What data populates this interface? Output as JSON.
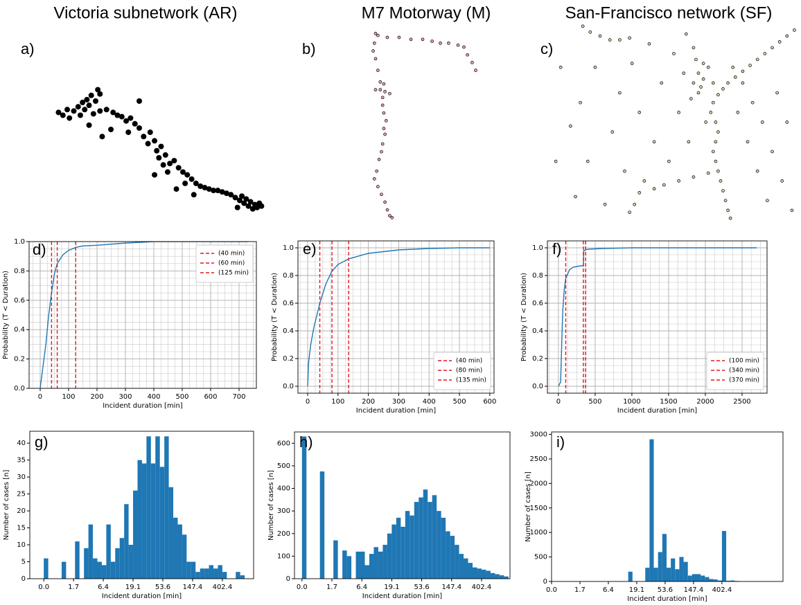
{
  "chart_data": [
    {
      "type": "scatter",
      "title": "Victoria subnetwork (AR)",
      "panel_label": "a)",
      "axes": false,
      "color": "#000000",
      "edgecolor": "#000000",
      "xlim": [
        0,
        100
      ],
      "ylim": [
        0,
        100
      ],
      "x": [
        3,
        5,
        7,
        8,
        10,
        12,
        13,
        14,
        15,
        16,
        17,
        18,
        19,
        20,
        21,
        22,
        17,
        22,
        25,
        28,
        30,
        32,
        34,
        36,
        38,
        35,
        40,
        42,
        45,
        44,
        47,
        48,
        50,
        49,
        52,
        51,
        54,
        56,
        47,
        53,
        58,
        60,
        62,
        64,
        61,
        66,
        68,
        70,
        72,
        74,
        76,
        78,
        80,
        82,
        84,
        86,
        87,
        88,
        89,
        90,
        91,
        92,
        93,
        94,
        95,
        96,
        85,
        65,
        57,
        23,
        27,
        40
      ],
      "values": [
        72,
        70,
        74,
        68,
        73,
        76,
        70,
        79,
        74,
        81,
        77,
        84,
        71,
        80,
        88,
        85,
        63,
        73,
        74,
        72,
        70,
        69,
        66,
        68,
        64,
        58,
        61,
        55,
        58,
        50,
        52,
        45,
        48,
        40,
        42,
        35,
        36,
        38,
        28,
        30,
        33,
        30,
        28,
        25,
        22,
        22,
        20,
        19,
        18,
        17,
        17,
        16,
        15,
        14,
        12,
        10,
        13,
        8,
        11,
        6,
        9,
        4,
        7,
        5,
        8,
        6,
        5,
        14,
        18,
        55,
        60,
        80
      ]
    },
    {
      "type": "scatter",
      "title": "M7 Motorway  (M)",
      "panel_label": "b)",
      "axes": false,
      "color": "#e8a0b0",
      "edgecolor": "#000000",
      "xlim": [
        0,
        100
      ],
      "ylim": [
        0,
        100
      ],
      "x": [
        10,
        12,
        20,
        30,
        40,
        50,
        58,
        65,
        72,
        80,
        85,
        88,
        92,
        95,
        9,
        8,
        10,
        12,
        14,
        10,
        14,
        18,
        22,
        16,
        17,
        16,
        17,
        19,
        17,
        18,
        16,
        15,
        13,
        11,
        9,
        12,
        15,
        18,
        20,
        22,
        24
      ],
      "values": [
        97,
        96,
        95,
        95,
        94,
        94,
        93,
        92,
        92,
        91,
        90,
        86,
        82,
        78,
        92,
        88,
        84,
        78,
        72,
        68,
        68,
        67,
        66,
        64,
        71,
        60,
        56,
        52,
        48,
        45,
        40,
        36,
        32,
        26,
        22,
        18,
        14,
        10,
        6,
        3,
        2
      ]
    },
    {
      "type": "scatter",
      "title": "San-Francisco network  (SF)",
      "panel_label": "c)",
      "axes": false,
      "color": "#c8d8a8",
      "edgecolor": "#000000",
      "xlim": [
        0,
        100
      ],
      "ylim": [
        0,
        100
      ],
      "x": [
        99,
        96,
        93,
        90,
        87,
        84,
        81,
        78,
        75,
        72,
        70,
        68,
        66,
        65,
        67,
        68,
        67,
        66,
        67,
        68,
        69,
        70,
        71,
        72,
        73,
        64,
        58,
        52,
        46,
        42,
        13,
        16,
        20,
        24,
        28,
        32,
        38,
        36,
        34,
        32,
        2,
        4,
        8,
        10,
        12,
        15,
        18,
        22,
        25,
        28,
        30,
        33,
        36,
        40,
        42,
        45,
        48,
        50,
        52,
        54,
        56,
        58,
        60,
        62,
        63,
        74,
        76,
        78,
        80,
        82,
        84,
        86,
        88,
        90,
        92,
        94,
        96,
        98,
        55,
        60,
        58,
        62,
        64,
        66,
        61,
        59,
        57
      ],
      "values": [
        97,
        94,
        91,
        88,
        85,
        82,
        79,
        76,
        73,
        70,
        67,
        64,
        60,
        55,
        50,
        45,
        40,
        35,
        30,
        25,
        20,
        15,
        10,
        5,
        1,
        24,
        22,
        20,
        18,
        16,
        99,
        96,
        94,
        92,
        92,
        93,
        20,
        14,
        8,
        4,
        30,
        78,
        48,
        12,
        60,
        30,
        78,
        8,
        45,
        65,
        25,
        80,
        55,
        90,
        40,
        70,
        30,
        85,
        55,
        75,
        40,
        88,
        65,
        80,
        50,
        78,
        55,
        70,
        40,
        60,
        25,
        50,
        10,
        35,
        65,
        20,
        50,
        5,
        95,
        75,
        70,
        72,
        78,
        70,
        68,
        82,
        62
      ]
    },
    {
      "type": "line",
      "panel_label": "d)",
      "xlabel": "Incident duration [min]",
      "ylabel": "Probability (T < Duration)",
      "color": "#1f77b4",
      "grid": true,
      "minor_grid": true,
      "xlim": [
        -39,
        761
      ],
      "ylim": [
        0,
        1
      ],
      "xticks": [
        0,
        100,
        200,
        300,
        400,
        500,
        600,
        700
      ],
      "yticks": [
        {
          "value": 0,
          "label": "0.0"
        },
        0.2,
        0.4,
        0.6,
        0.8,
        {
          "value": 1,
          "label": "1.0"
        }
      ],
      "x": [
        0,
        10,
        20,
        30,
        40,
        50,
        60,
        80,
        100,
        125,
        150,
        200,
        300,
        400,
        500,
        600,
        730
      ],
      "values": [
        0,
        0.15,
        0.3,
        0.5,
        0.65,
        0.78,
        0.85,
        0.91,
        0.94,
        0.96,
        0.97,
        0.975,
        0.99,
        1,
        1,
        1,
        1
      ],
      "legend": "upper right",
      "vlines": [
        {
          "value": 40,
          "label": "(40 min)",
          "color": "#e8141e"
        },
        {
          "value": 60,
          "label": "(60 min)",
          "color": "#e8141e"
        },
        {
          "value": 125,
          "label": "(125 min)",
          "color": "#e8141e"
        }
      ]
    },
    {
      "type": "line",
      "panel_label": "e)",
      "xlabel": "Incident duration [min]",
      "ylabel": "Probability (T < Duration)",
      "color": "#1f77b4",
      "grid": true,
      "minor_grid": true,
      "xlim": [
        -32,
        614
      ],
      "ylim": [
        -0.05,
        1.05
      ],
      "xticks": [
        0,
        100,
        200,
        300,
        400,
        500,
        600
      ],
      "yticks": [
        {
          "value": 0,
          "label": "0.0"
        },
        0.2,
        0.4,
        0.6,
        0.8,
        {
          "value": 1,
          "label": "1.0"
        }
      ],
      "x": [
        0,
        3,
        10,
        20,
        40,
        60,
        80,
        100,
        135,
        200,
        300,
        400,
        500,
        600
      ],
      "values": [
        0,
        0.17,
        0.3,
        0.42,
        0.6,
        0.74,
        0.83,
        0.88,
        0.92,
        0.96,
        0.985,
        0.995,
        1,
        1
      ],
      "legend": "lower right",
      "vlines": [
        {
          "value": 40,
          "label": "(40 min)",
          "color": "#e8141e"
        },
        {
          "value": 80,
          "label": "(80 min)",
          "color": "#e8141e"
        },
        {
          "value": 135,
          "label": "(135 min)",
          "color": "#e8141e"
        }
      ]
    },
    {
      "type": "line",
      "panel_label": "f)",
      "xlabel": "Incident duration [min]",
      "ylabel": "Probability (T < Duration)",
      "color": "#1f77b4",
      "grid": true,
      "minor_grid": true,
      "xlim": [
        -150,
        2840
      ],
      "ylim": [
        -0.05,
        1.05
      ],
      "xticks": [
        0,
        500,
        1000,
        1500,
        2000,
        2500
      ],
      "yticks": [
        {
          "value": 0,
          "label": "0.0"
        },
        0.2,
        0.4,
        0.6,
        0.8,
        {
          "value": 1,
          "label": "1.0"
        }
      ],
      "x": [
        0,
        30,
        50,
        60,
        80,
        100,
        150,
        200,
        250,
        300,
        340,
        345,
        370,
        400,
        600,
        1000,
        2000,
        2700
      ],
      "values": [
        0,
        0.03,
        0.4,
        0.55,
        0.7,
        0.78,
        0.84,
        0.86,
        0.865,
        0.87,
        0.87,
        0.98,
        0.985,
        0.99,
        0.995,
        1,
        1,
        1
      ],
      "legend": "lower right",
      "vlines": [
        {
          "value": 100,
          "label": "(100 min)",
          "color": "#e8141e"
        },
        {
          "value": 340,
          "label": "(340 min)",
          "color": "#e8141e"
        },
        {
          "value": 370,
          "label": "(370 min)",
          "color": "#e8141e"
        }
      ]
    },
    {
      "type": "histogram",
      "panel_label": "g)",
      "xlabel": "Incident duration [min]",
      "ylabel": "Number of cases [n]",
      "color": "#1f77b4",
      "xlim": [
        -0.47,
        7.05
      ],
      "ylim": [
        0,
        43.5
      ],
      "xticks": [
        {
          "value": 0,
          "label": "0.0"
        },
        {
          "value": 1,
          "label": "1.7"
        },
        {
          "value": 2,
          "label": "6.4"
        },
        {
          "value": 3,
          "label": "19.1"
        },
        {
          "value": 4,
          "label": "53.6"
        },
        {
          "value": 5,
          "label": "147.4"
        },
        {
          "value": 6,
          "label": "402.4"
        }
      ],
      "yticks": [
        0,
        5,
        10,
        15,
        20,
        25,
        30,
        35,
        40
      ],
      "bins": [
        0,
        0.15,
        0.3,
        0.45,
        0.6,
        0.75,
        0.9,
        1.05,
        1.2,
        1.35,
        1.5,
        1.65,
        1.8,
        1.95,
        2.1,
        2.25,
        2.4,
        2.55,
        2.7,
        2.85,
        3,
        3.15,
        3.3,
        3.45,
        3.6,
        3.75,
        3.9,
        4.05,
        4.2,
        4.35,
        4.5,
        4.65,
        4.8,
        4.95,
        5.1,
        5.25,
        5.4,
        5.55,
        5.7,
        5.85,
        6,
        6.15,
        6.3,
        6.45,
        6.6,
        6.75,
        6.9
      ],
      "values": [
        6,
        0,
        0,
        0,
        5,
        0,
        0,
        11,
        0,
        9,
        16,
        6,
        5,
        4,
        16,
        5,
        9,
        12,
        22,
        10,
        26,
        35,
        34,
        42,
        34,
        42,
        33,
        42,
        27,
        18,
        16,
        13,
        5,
        5,
        2,
        3,
        3,
        4,
        3,
        4,
        2,
        0,
        0,
        2,
        1,
        0
      ]
    },
    {
      "type": "histogram",
      "panel_label": "h)",
      "xlabel": "Incident duration [min]",
      "ylabel": "Number of cases [n]",
      "color": "#1f77b4",
      "xlim": [
        -0.25,
        6.95
      ],
      "ylim": [
        0,
        650
      ],
      "xticks": [
        {
          "value": 0,
          "label": "0.0"
        },
        {
          "value": 1,
          "label": "1.7"
        },
        {
          "value": 2,
          "label": "6.4"
        },
        {
          "value": 3,
          "label": "19.1"
        },
        {
          "value": 4,
          "label": "53.6"
        },
        {
          "value": 5,
          "label": "147.4"
        },
        {
          "value": 6,
          "label": "402.4"
        }
      ],
      "yticks": [
        0,
        100,
        200,
        300,
        400,
        500,
        600
      ],
      "bins": [
        0,
        0.15,
        0.3,
        0.45,
        0.6,
        0.75,
        0.9,
        1.05,
        1.2,
        1.35,
        1.5,
        1.65,
        1.8,
        1.95,
        2.1,
        2.25,
        2.4,
        2.55,
        2.7,
        2.85,
        3,
        3.15,
        3.3,
        3.45,
        3.6,
        3.75,
        3.9,
        4.05,
        4.2,
        4.35,
        4.5,
        4.65,
        4.8,
        4.95,
        5.1,
        5.25,
        5.4,
        5.55,
        5.7,
        5.85,
        6,
        6.15,
        6.3,
        6.45,
        6.6,
        6.75,
        6.9
      ],
      "values": [
        630,
        0,
        0,
        0,
        475,
        0,
        0,
        170,
        0,
        125,
        100,
        0,
        120,
        120,
        60,
        110,
        140,
        120,
        150,
        200,
        240,
        270,
        230,
        300,
        280,
        340,
        360,
        395,
        340,
        370,
        300,
        270,
        210,
        190,
        150,
        110,
        90,
        70,
        50,
        45,
        40,
        35,
        25,
        20,
        15,
        10
      ]
    },
    {
      "type": "histogram",
      "panel_label": "i)",
      "xlabel": "Incident duration [min]",
      "ylabel": "Number of cases [n]",
      "color": "#1f77b4",
      "xlim": [
        0,
        8.15
      ],
      "ylim": [
        0,
        3050
      ],
      "xticks": [
        {
          "value": 0,
          "label": "0.0"
        },
        {
          "value": 1,
          "label": "1.7"
        },
        {
          "value": 2,
          "label": "6.4"
        },
        {
          "value": 3,
          "label": "19.1"
        },
        {
          "value": 4,
          "label": "53.6"
        },
        {
          "value": 5,
          "label": "147.4"
        },
        {
          "value": 6,
          "label": "402.4"
        }
      ],
      "yticks": [
        0,
        500,
        1000,
        1500,
        2000,
        2500,
        3000
      ],
      "bins": [
        0,
        0.15,
        0.3,
        0.45,
        0.6,
        0.75,
        0.9,
        1.05,
        1.2,
        1.35,
        1.5,
        1.65,
        1.8,
        1.95,
        2.1,
        2.25,
        2.4,
        2.55,
        2.7,
        2.85,
        3,
        3.15,
        3.3,
        3.45,
        3.6,
        3.75,
        3.9,
        4.05,
        4.2,
        4.35,
        4.5,
        4.65,
        4.8,
        4.95,
        5.1,
        5.25,
        5.4,
        5.55,
        5.7,
        5.85,
        6,
        6.15,
        6.3,
        6.45,
        6.6,
        6.75,
        6.9
      ],
      "values": [
        0,
        0,
        0,
        0,
        0,
        0,
        0,
        0,
        0,
        0,
        0,
        0,
        0,
        0,
        0,
        0,
        0,
        0,
        200,
        0,
        0,
        0,
        280,
        2900,
        280,
        600,
        970,
        280,
        470,
        250,
        500,
        400,
        120,
        150,
        150,
        120,
        90,
        50,
        40,
        20,
        1030,
        15,
        20,
        10,
        5,
        0
      ]
    }
  ]
}
